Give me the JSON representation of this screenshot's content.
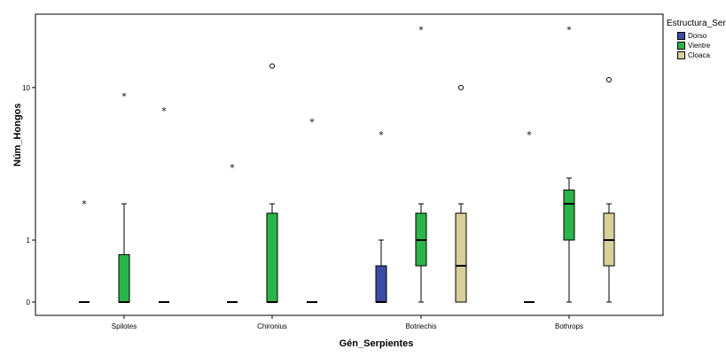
{
  "chart_data": {
    "type": "boxplot",
    "xlabel": "Gén_Serpientes",
    "ylabel": "Núm_Hongos",
    "y_ticks": [
      {
        "label": "0",
        "value": 0
      },
      {
        "label": "1",
        "value": 1
      },
      {
        "label": "10",
        "value": 10
      }
    ],
    "y_scale": "log(1+y)",
    "categories": [
      "Spilotes",
      "Chironius",
      "Botriechis",
      "Bothrops"
    ],
    "legend": {
      "title": "Estructura_Serp",
      "placement": "right",
      "items": [
        {
          "name": "Dorso",
          "color": "#3c4ba6"
        },
        {
          "name": "Vientre",
          "color": "#2bb44a"
        },
        {
          "name": "Cloaca",
          "color": "#d8d09a"
        }
      ]
    },
    "boxes": [
      {
        "category": "Spilotes",
        "series": "Dorso",
        "min": 0,
        "q1": 0,
        "median": 0,
        "q3": 0,
        "max": 0,
        "outliers": [
          {
            "v": 2,
            "m": "star"
          }
        ]
      },
      {
        "category": "Spilotes",
        "series": "Vientre",
        "min": 0,
        "q1": 0,
        "median": 0,
        "q3": 0.7,
        "max": 2,
        "outliers": [
          {
            "v": 9,
            "m": "star"
          }
        ]
      },
      {
        "category": "Spilotes",
        "series": "Cloaca",
        "min": 0,
        "q1": 0,
        "median": 0,
        "q3": 0,
        "max": 0,
        "outliers": [
          {
            "v": 7.5,
            "m": "star"
          }
        ]
      },
      {
        "category": "Chironius",
        "series": "Dorso",
        "min": 0,
        "q1": 0,
        "median": 0,
        "q3": 0,
        "max": 0,
        "outliers": [
          {
            "v": 3.5,
            "m": "star"
          }
        ]
      },
      {
        "category": "Chironius",
        "series": "Vientre",
        "min": 0,
        "q1": 0,
        "median": 0,
        "q3": 1.7,
        "max": 2,
        "outliers": [
          {
            "v": 13,
            "m": "circle"
          }
        ]
      },
      {
        "category": "Chironius",
        "series": "Cloaca",
        "min": 0,
        "q1": 0,
        "median": 0,
        "q3": 0,
        "max": 0,
        "outliers": [
          {
            "v": 6.5,
            "m": "star"
          }
        ]
      },
      {
        "category": "Botriechis",
        "series": "Dorso",
        "min": 0,
        "q1": 0,
        "median": 0,
        "q3": 0.5,
        "max": 1,
        "outliers": [
          {
            "v": 5.5,
            "m": "star"
          }
        ]
      },
      {
        "category": "Botriechis",
        "series": "Vientre",
        "min": 0,
        "q1": 0.5,
        "median": 1,
        "q3": 1.7,
        "max": 2,
        "outliers": [
          {
            "v": 20,
            "m": "star"
          }
        ]
      },
      {
        "category": "Botriechis",
        "series": "Cloaca",
        "min": 0,
        "q1": 0,
        "median": 0.5,
        "q3": 1.7,
        "max": 2,
        "outliers": [
          {
            "v": 10,
            "m": "circle"
          }
        ]
      },
      {
        "category": "Bothrops",
        "series": "Dorso",
        "min": 0,
        "q1": 0,
        "median": 0,
        "q3": 0,
        "max": 0,
        "outliers": [
          {
            "v": 5.5,
            "m": "star"
          }
        ]
      },
      {
        "category": "Bothrops",
        "series": "Vientre",
        "min": 0,
        "q1": 1,
        "median": 2,
        "q3": 2.5,
        "max": 3,
        "outliers": [
          {
            "v": 20,
            "m": "star"
          }
        ]
      },
      {
        "category": "Bothrops",
        "series": "Cloaca",
        "min": 0,
        "q1": 0.5,
        "median": 1,
        "q3": 1.7,
        "max": 2,
        "outliers": [
          {
            "v": 11,
            "m": "circle"
          }
        ]
      }
    ]
  }
}
